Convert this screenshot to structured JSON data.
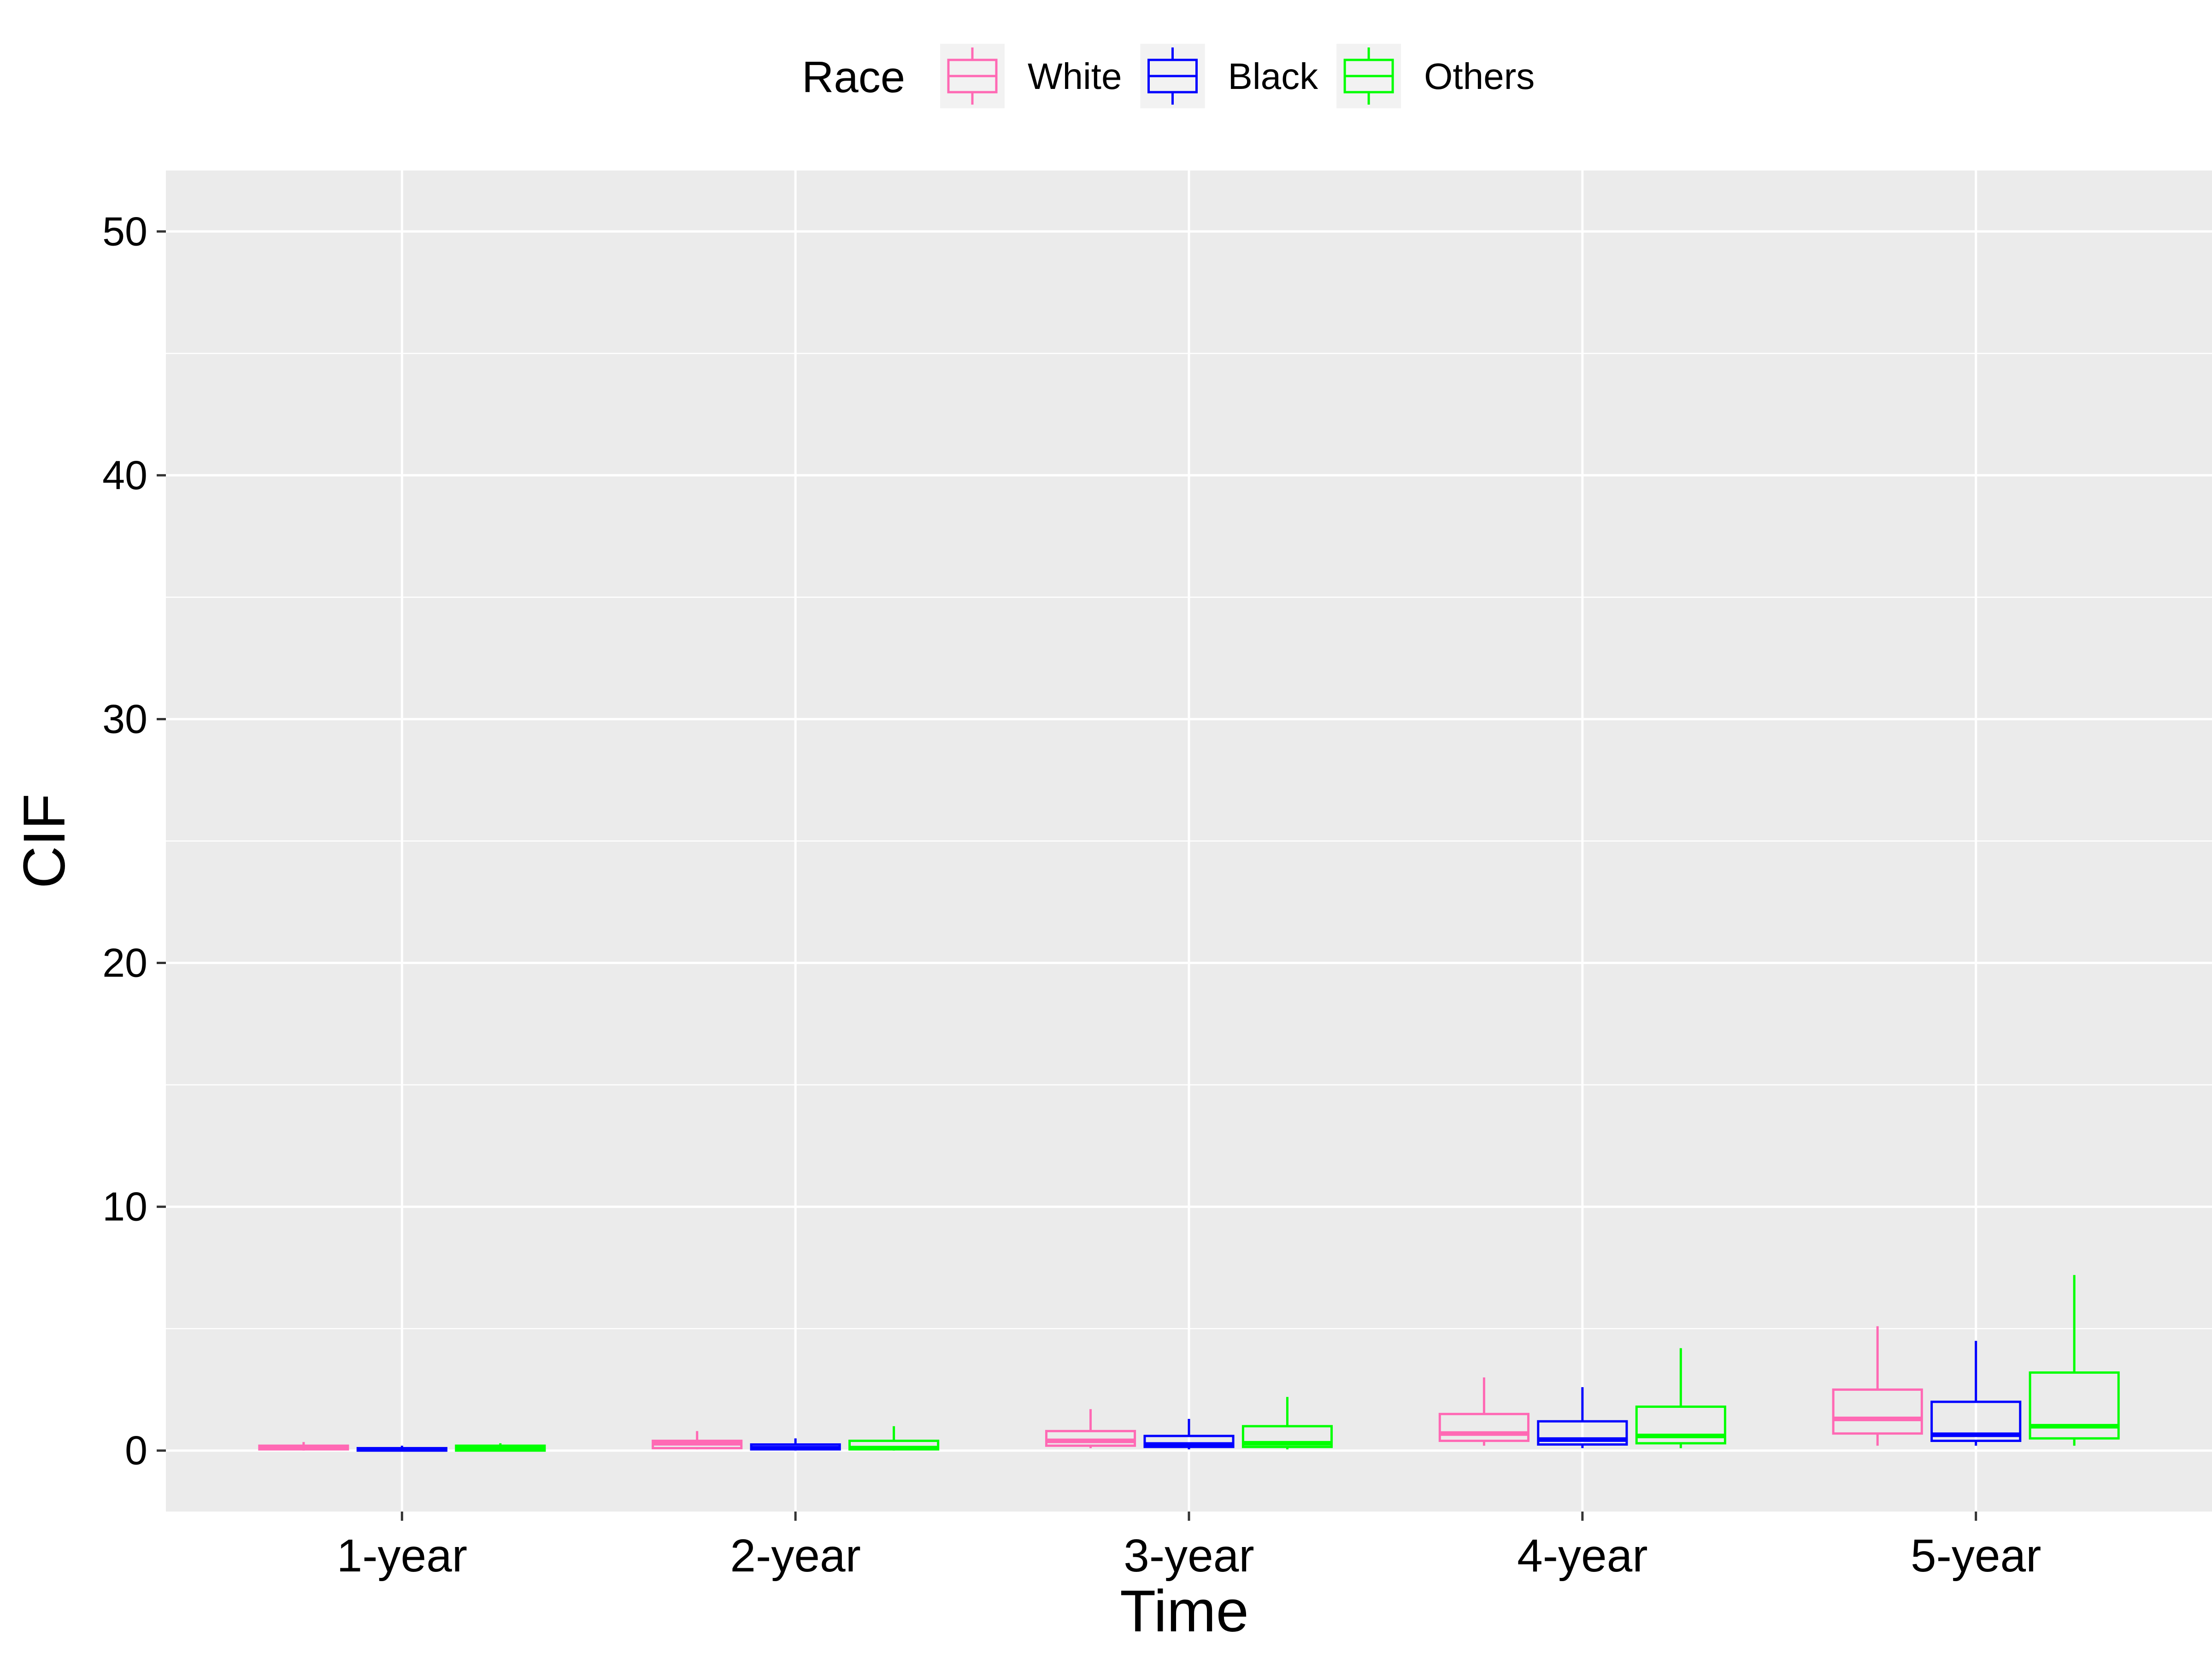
{
  "chart_data": {
    "type": "boxplot",
    "xlabel": "Time",
    "ylabel": "CIF",
    "ylim": [
      -2.5,
      52.5
    ],
    "yticks": [
      0,
      10,
      20,
      30,
      40,
      50
    ],
    "grid": true,
    "legend": {
      "title": "Race",
      "placement": "top"
    },
    "categories": [
      "1-year",
      "2-year",
      "3-year",
      "4-year",
      "5-year"
    ],
    "series": [
      {
        "name": "White",
        "color": "#FF69B4",
        "boxes": [
          {
            "min": 0.0,
            "q1": 0.05,
            "median": 0.1,
            "q3": 0.2,
            "max": 0.35
          },
          {
            "min": 0.05,
            "q1": 0.1,
            "median": 0.3,
            "q3": 0.4,
            "max": 0.8
          },
          {
            "min": 0.1,
            "q1": 0.2,
            "median": 0.4,
            "q3": 0.8,
            "max": 1.7
          },
          {
            "min": 0.2,
            "q1": 0.4,
            "median": 0.7,
            "q3": 1.5,
            "max": 3.0
          },
          {
            "min": 0.2,
            "q1": 0.7,
            "median": 1.3,
            "q3": 2.5,
            "max": 5.1
          }
        ]
      },
      {
        "name": "Black",
        "color": "#0000FF",
        "boxes": [
          {
            "min": 0.0,
            "q1": 0.0,
            "median": 0.05,
            "q3": 0.1,
            "max": 0.2
          },
          {
            "min": 0.0,
            "q1": 0.05,
            "median": 0.1,
            "q3": 0.25,
            "max": 0.5
          },
          {
            "min": 0.05,
            "q1": 0.15,
            "median": 0.25,
            "q3": 0.6,
            "max": 1.3
          },
          {
            "min": 0.1,
            "q1": 0.25,
            "median": 0.45,
            "q3": 1.2,
            "max": 2.6
          },
          {
            "min": 0.2,
            "q1": 0.4,
            "median": 0.65,
            "q3": 2.0,
            "max": 4.5
          }
        ]
      },
      {
        "name": "Others",
        "color": "#00FF00",
        "boxes": [
          {
            "min": 0.0,
            "q1": 0.0,
            "median": 0.1,
            "q3": 0.2,
            "max": 0.3
          },
          {
            "min": 0.0,
            "q1": 0.05,
            "median": 0.1,
            "q3": 0.4,
            "max": 1.0
          },
          {
            "min": 0.05,
            "q1": 0.15,
            "median": 0.3,
            "q3": 1.0,
            "max": 2.2
          },
          {
            "min": 0.1,
            "q1": 0.3,
            "median": 0.6,
            "q3": 1.8,
            "max": 4.2
          },
          {
            "min": 0.2,
            "q1": 0.5,
            "median": 1.0,
            "q3": 3.2,
            "max": 7.2
          }
        ]
      }
    ]
  }
}
